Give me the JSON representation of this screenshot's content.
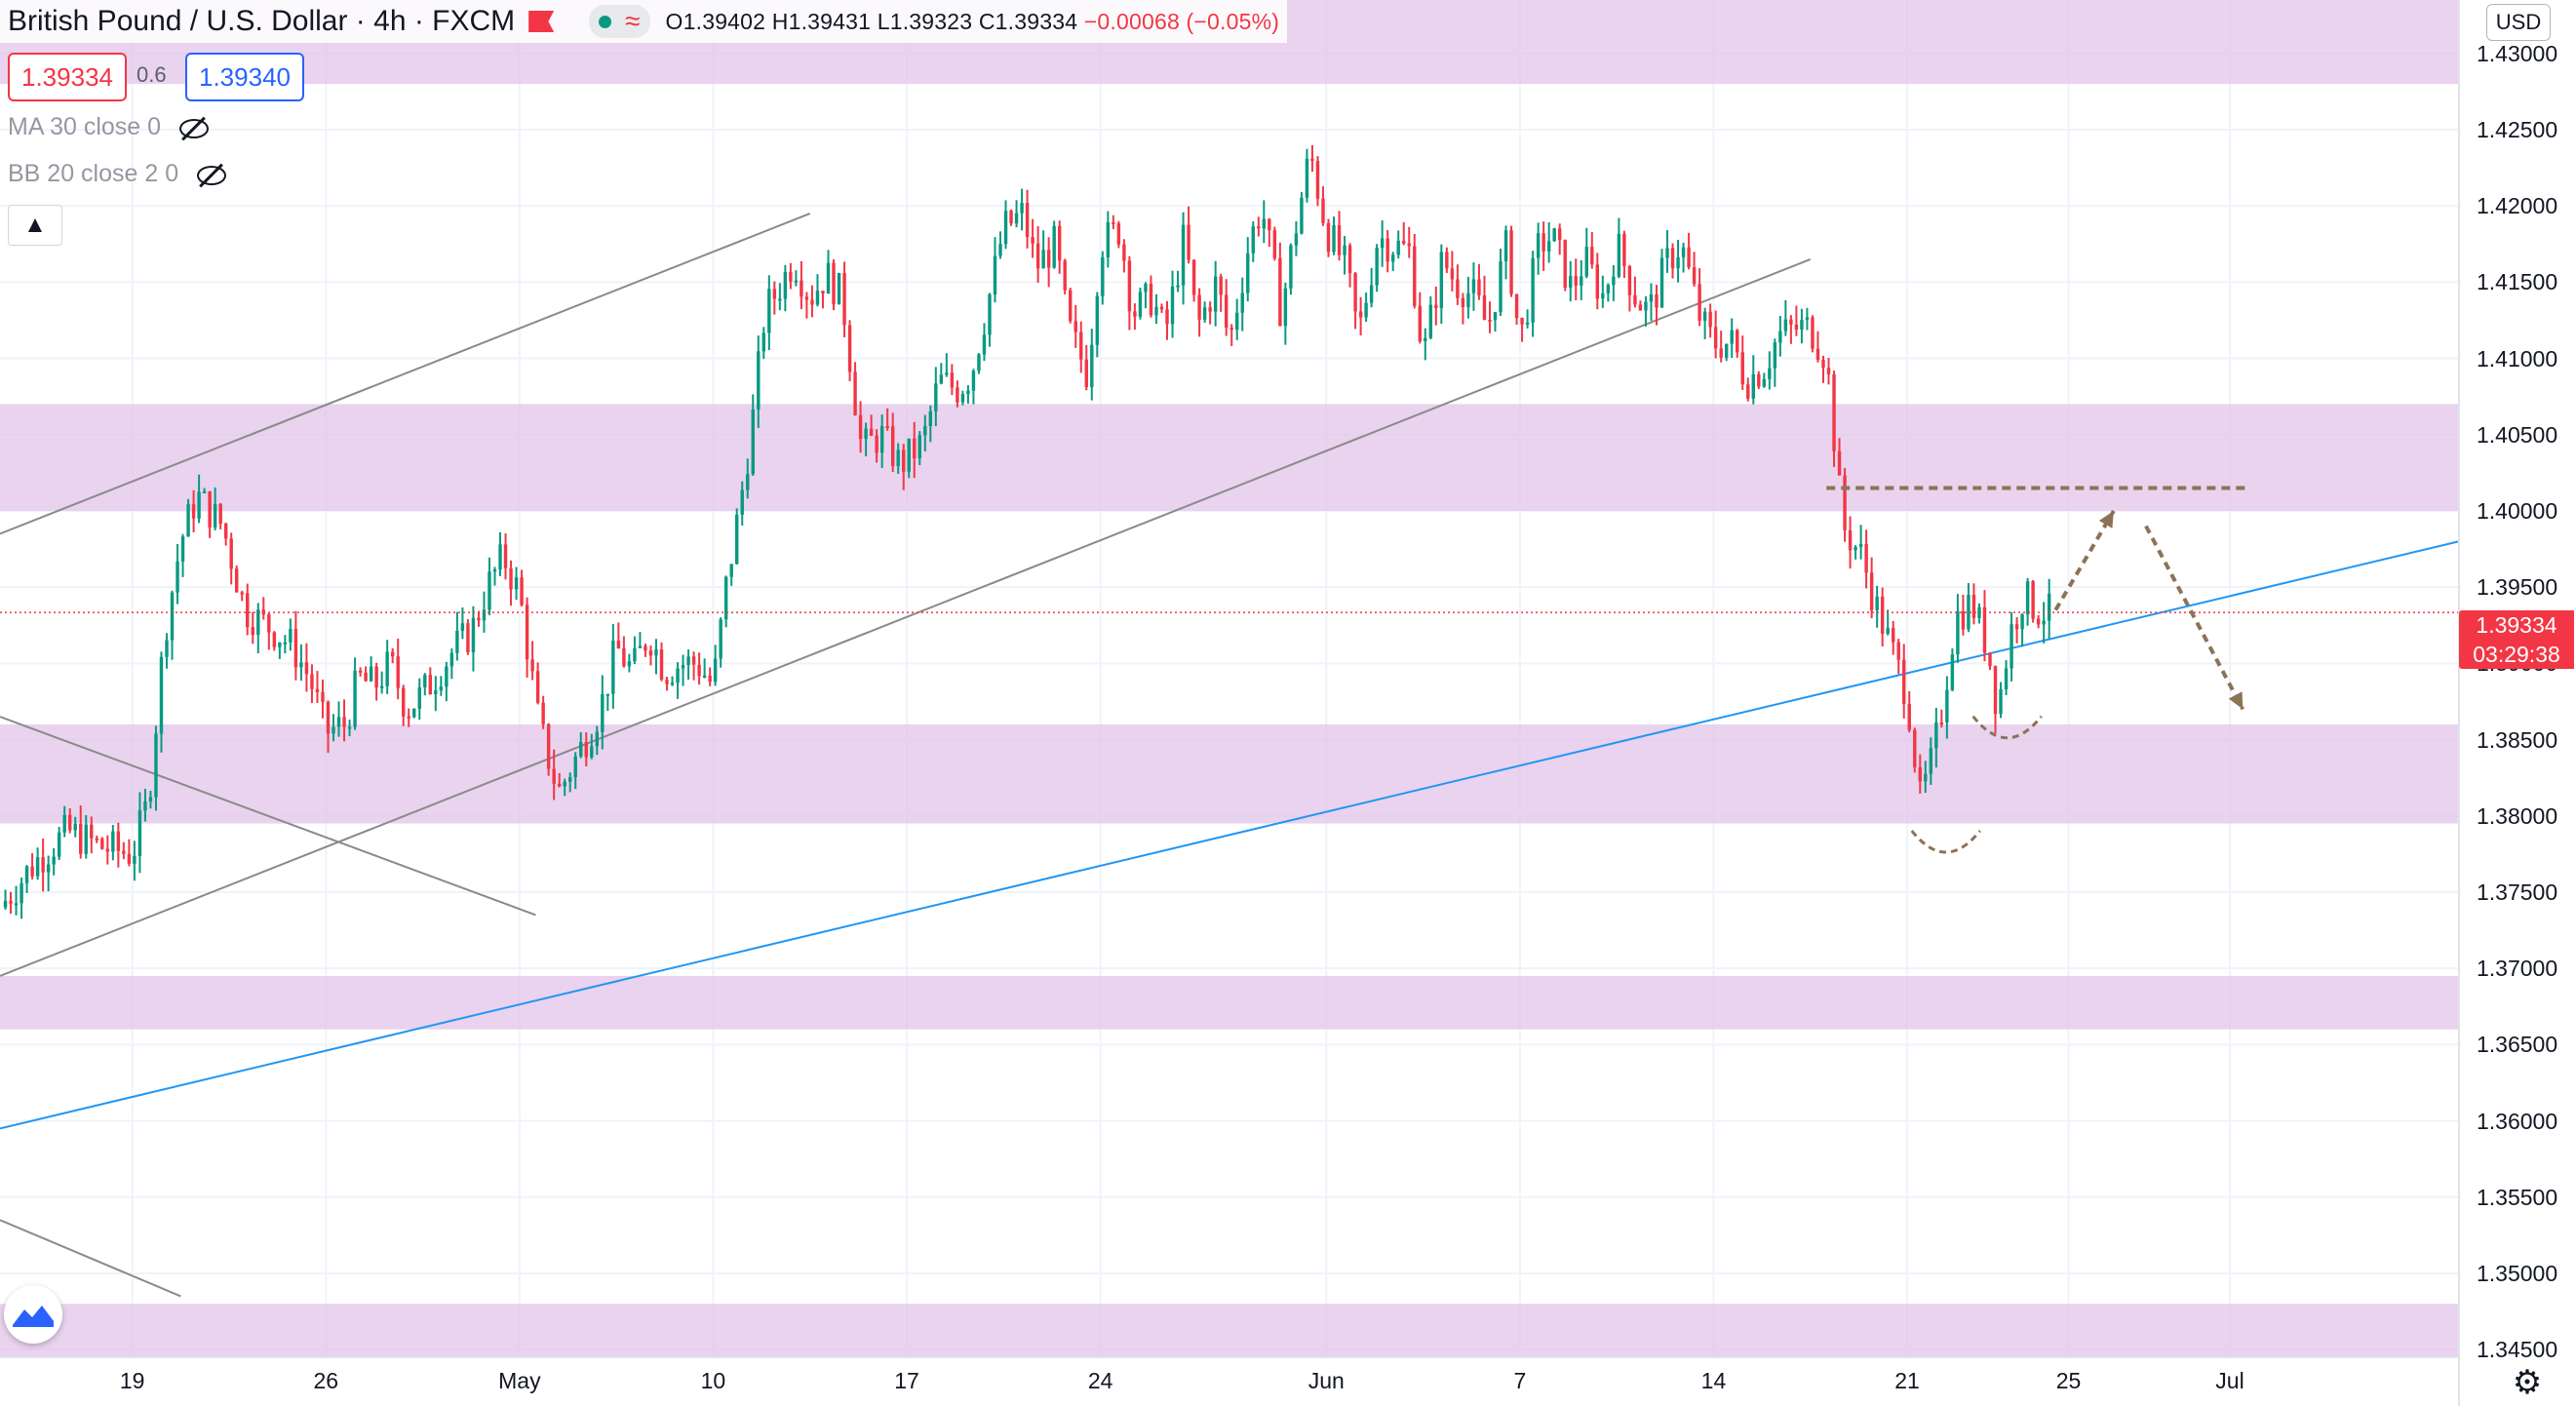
{
  "header": {
    "symbol": "British Pound / U.S. Dollar · 4h · FXCM",
    "open": "O1.39402",
    "high": "H1.39431",
    "low": "L1.39323",
    "close": "C1.39334",
    "change": "−0.00068 (−0.05%)"
  },
  "trade": {
    "sell": "1.39334",
    "spread": "0.6",
    "buy": "1.39340"
  },
  "indicators": [
    {
      "label": "MA 30 close 0"
    },
    {
      "label": "BB 20 close 2 0"
    }
  ],
  "axis": {
    "currency": "USD",
    "collapse_icon": "chevron-up-icon"
  },
  "price_tag": {
    "price": "1.39334",
    "countdown": "03:29:38"
  },
  "colors": {
    "up": "#089981",
    "down": "#f23645",
    "zone": "#e1c4e8",
    "trend": "#2196f3",
    "channel": "#8a8a8a",
    "arrow": "#8b7355"
  },
  "chart_data": {
    "type": "candlestick",
    "title": "British Pound / U.S. Dollar",
    "timeframe": "4h",
    "y_ticks": [
      "1.43000",
      "1.42500",
      "1.42000",
      "1.41500",
      "1.41000",
      "1.40500",
      "1.40000",
      "1.39500",
      "1.39000",
      "1.38500",
      "1.38000",
      "1.37500",
      "1.37000",
      "1.36500",
      "1.36000",
      "1.35500",
      "1.35000",
      "1.34500"
    ],
    "x_ticks": [
      "19",
      "26",
      "May",
      "10",
      "17",
      "24",
      "Jun",
      "7",
      "14",
      "21",
      "25",
      "Jul"
    ],
    "ylim": [
      1.3445,
      1.4335
    ],
    "x_range": [
      -4.1,
      72.1
    ],
    "tick_x": [
      0,
      6,
      12,
      18,
      24,
      30,
      37,
      43,
      49,
      55,
      60,
      65
    ],
    "current_price": 1.39334,
    "zones": [
      [
        1.428,
        1.434
      ],
      [
        1.4,
        1.407
      ],
      [
        1.3795,
        1.386
      ],
      [
        1.366,
        1.3695
      ],
      [
        1.3445,
        1.348
      ]
    ],
    "path": [
      [
        -4.1,
        1.374
      ],
      [
        -3,
        1.377
      ],
      [
        -2,
        1.379
      ],
      [
        -1,
        1.378
      ],
      [
        0,
        1.3775
      ],
      [
        0.5,
        1.381
      ],
      [
        1,
        1.392
      ],
      [
        1.5,
        1.398
      ],
      [
        2,
        1.401
      ],
      [
        2.8,
        1.399
      ],
      [
        3.5,
        1.3935
      ],
      [
        4.5,
        1.392
      ],
      [
        5,
        1.391
      ],
      [
        5.5,
        1.389
      ],
      [
        6,
        1.3855
      ],
      [
        6.6,
        1.386
      ],
      [
        7,
        1.389
      ],
      [
        7.5,
        1.3885
      ],
      [
        8,
        1.39
      ],
      [
        8.5,
        1.387
      ],
      [
        9,
        1.388
      ],
      [
        10,
        1.391
      ],
      [
        10.5,
        1.392
      ],
      [
        11,
        1.395
      ],
      [
        11.5,
        1.397
      ],
      [
        12,
        1.3945
      ],
      [
        12.6,
        1.386
      ],
      [
        13.2,
        1.3815
      ],
      [
        13.8,
        1.384
      ],
      [
        14.5,
        1.387
      ],
      [
        15,
        1.391
      ],
      [
        15.5,
        1.3895
      ],
      [
        16,
        1.392
      ],
      [
        16.5,
        1.3895
      ],
      [
        17,
        1.39
      ],
      [
        17.5,
        1.39
      ],
      [
        18,
        1.3885
      ],
      [
        18.4,
        1.395
      ],
      [
        18.8,
        1.4
      ],
      [
        19.2,
        1.4055
      ],
      [
        19.6,
        1.413
      ],
      [
        20,
        1.4145
      ],
      [
        20.5,
        1.4165
      ],
      [
        21,
        1.414
      ],
      [
        21.5,
        1.4155
      ],
      [
        22,
        1.414
      ],
      [
        22.6,
        1.404
      ],
      [
        23.2,
        1.405
      ],
      [
        23.8,
        1.403
      ],
      [
        24.5,
        1.4045
      ],
      [
        25,
        1.4085
      ],
      [
        25.6,
        1.408
      ],
      [
        26,
        1.409
      ],
      [
        26.5,
        1.4135
      ],
      [
        27,
        1.4185
      ],
      [
        27.6,
        1.4195
      ],
      [
        28,
        1.416
      ],
      [
        28.6,
        1.4175
      ],
      [
        29,
        1.412
      ],
      [
        29.6,
        1.409
      ],
      [
        30,
        1.4175
      ],
      [
        30.6,
        1.4185
      ],
      [
        31,
        1.413
      ],
      [
        31.6,
        1.414
      ],
      [
        32,
        1.4115
      ],
      [
        32.6,
        1.418
      ],
      [
        33,
        1.412
      ],
      [
        33.6,
        1.415
      ],
      [
        34,
        1.411
      ],
      [
        34.6,
        1.4175
      ],
      [
        35,
        1.42
      ],
      [
        35.6,
        1.413
      ],
      [
        36,
        1.418
      ],
      [
        36.5,
        1.4235
      ],
      [
        37,
        1.4185
      ],
      [
        37.6,
        1.416
      ],
      [
        38,
        1.4115
      ],
      [
        38.6,
        1.418
      ],
      [
        39,
        1.4175
      ],
      [
        39.6,
        1.417
      ],
      [
        40,
        1.41
      ],
      [
        40.6,
        1.4165
      ],
      [
        41,
        1.415
      ],
      [
        41.6,
        1.414
      ],
      [
        42,
        1.412
      ],
      [
        42.6,
        1.4175
      ],
      [
        43,
        1.411
      ],
      [
        43.6,
        1.4175
      ],
      [
        44,
        1.418
      ],
      [
        44.6,
        1.4145
      ],
      [
        45,
        1.4165
      ],
      [
        45.6,
        1.414
      ],
      [
        46,
        1.4175
      ],
      [
        46.6,
        1.414
      ],
      [
        47,
        1.413
      ],
      [
        47.6,
        1.4165
      ],
      [
        48,
        1.4175
      ],
      [
        48.6,
        1.4125
      ],
      [
        49,
        1.411
      ],
      [
        49.6,
        1.411
      ],
      [
        50,
        1.4085
      ],
      [
        50.6,
        1.4095
      ],
      [
        51,
        1.4115
      ],
      [
        51.6,
        1.412
      ],
      [
        52,
        1.412
      ],
      [
        52.5,
        1.41
      ],
      [
        53,
        1.399
      ],
      [
        53.6,
        1.397
      ],
      [
        54,
        1.394
      ],
      [
        54.5,
        1.391
      ],
      [
        55,
        1.388
      ],
      [
        55.4,
        1.381
      ],
      [
        55.7,
        1.383
      ],
      [
        56,
        1.386
      ],
      [
        56.5,
        1.393
      ],
      [
        57,
        1.394
      ],
      [
        57.5,
        1.391
      ],
      [
        57.8,
        1.387
      ],
      [
        58.2,
        1.392
      ],
      [
        58.6,
        1.3945
      ],
      [
        59,
        1.3935
      ],
      [
        59.4,
        1.3933
      ]
    ],
    "channel_lines": [
      [
        [
          -4.1,
          1.3985
        ],
        [
          21,
          1.4195
        ]
      ],
      [
        [
          -4.1,
          1.3695
        ],
        [
          52,
          1.4165
        ]
      ],
      [
        [
          -4.1,
          1.3865
        ],
        [
          12.5,
          1.3735
        ]
      ],
      [
        [
          -4.1,
          1.3535
        ],
        [
          1.5,
          1.3485
        ]
      ]
    ],
    "trendline": [
      [
        -4.1,
        1.3595
      ],
      [
        72.1,
        1.398
      ]
    ],
    "resistance_dashed": {
      "y": 1.4015,
      "x": [
        52.5,
        65.5
      ]
    },
    "projection_up": [
      [
        59.6,
        1.3935
      ],
      [
        61.4,
        1.4
      ]
    ],
    "projection_down": [
      [
        62.4,
        1.399
      ],
      [
        65.4,
        1.387
      ]
    ],
    "curves": [
      [
        56.2,
        1.378
      ],
      [
        58.1,
        1.3855
      ]
    ]
  }
}
